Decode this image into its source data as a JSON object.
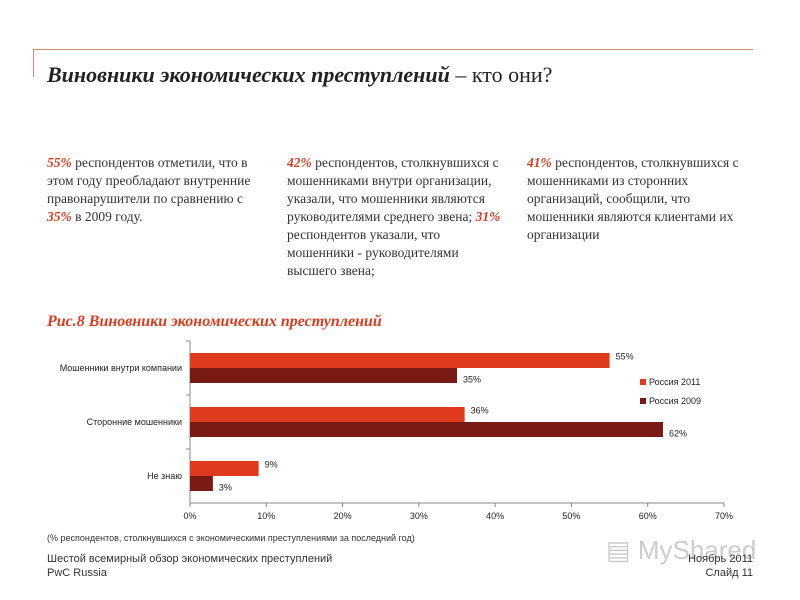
{
  "slide": {
    "title_em": "Виновники экономических преступлений",
    "title_rest": " – кто они?",
    "figure_title": "Рис.8 Виновники экономических преступлений",
    "note": "(% респондентов, столкнувшихся с экономическими преступлениями за последний год)",
    "footer": {
      "survey": "Шестой всемирный обзор экономических преступлений",
      "company": "PwC Russia",
      "date": "Ноябрь 2011",
      "slide_no": "Слайд 11"
    },
    "watermark": "MyShared"
  },
  "columns": [
    {
      "parts": [
        {
          "t": "55%",
          "hl": true
        },
        {
          "t": " респондентов отметили, что в этом году преобладают внутренние правонарушители по сравнению с ",
          "hl": false
        },
        {
          "t": "35%",
          "hl": true
        },
        {
          "t": " в 2009 году.",
          "hl": false
        }
      ]
    },
    {
      "parts": [
        {
          "t": "42%",
          "hl": true
        },
        {
          "t": " респондентов, столкнувшихся с мошенниками внутри организации, указали, что мошенники являются руководителями среднего звена; ",
          "hl": false
        },
        {
          "t": "31%",
          "hl": true
        },
        {
          "t": " респондентов указали, что мошенники - руководителями высшего звена;",
          "hl": false
        }
      ]
    },
    {
      "parts": [
        {
          "t": "41%",
          "hl": true
        },
        {
          "t": " респондентов, столкнувшихся с мошенниками из сторонних организаций, сообщили, что мошенники являются клиентами их организации",
          "hl": false
        }
      ]
    }
  ],
  "chart_data": {
    "type": "bar",
    "orientation": "horizontal",
    "categories": [
      "Мошенники внутри компании",
      "Сторонние мошенники",
      "Не знаю"
    ],
    "series": [
      {
        "name": "Россия 2011",
        "color": "#e03a1e",
        "values": [
          55,
          36,
          9
        ]
      },
      {
        "name": "Россия 2009",
        "color": "#7a1a14",
        "values": [
          35,
          62,
          3
        ]
      }
    ],
    "xlim": [
      0,
      70
    ],
    "xticks": [
      0,
      10,
      20,
      30,
      40,
      50,
      60,
      70
    ],
    "value_suffix": "%",
    "legend": "right",
    "grid": false
  }
}
